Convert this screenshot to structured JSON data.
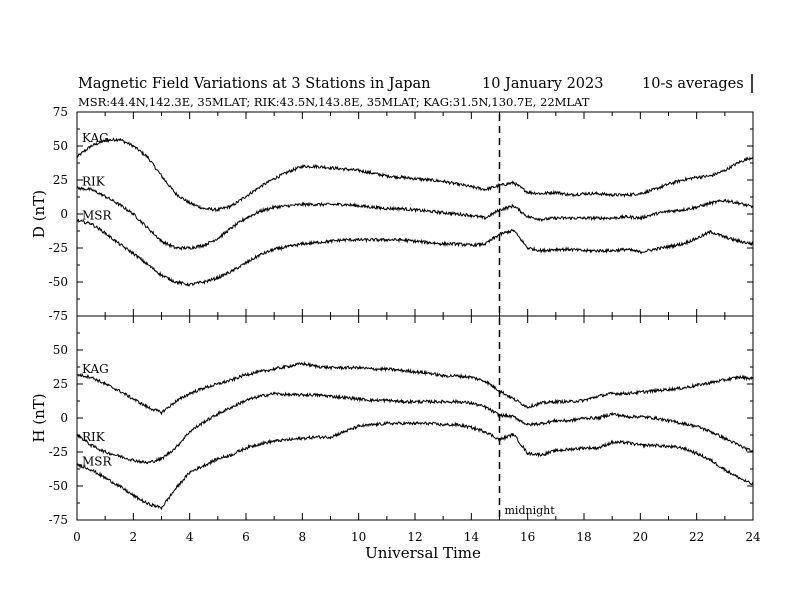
{
  "chart_data": {
    "type": "line",
    "title": "Magnetic Field Variations at 3 Stations in Japan",
    "date": "10 January  2023",
    "averaging": "10-s averages",
    "subtitle": "MSR:44.4N,142.3E, 35MLAT;  RIK:43.5N,143.8E, 35MLAT;  KAG:31.5N,130.7E, 22MLAT",
    "xlabel": "Universal Time",
    "xlim": [
      0,
      24
    ],
    "x_ticks": [
      "0",
      "2",
      "4",
      "6",
      "8",
      "10",
      "12",
      "14",
      "16",
      "18",
      "20",
      "22",
      "24"
    ],
    "grid": false,
    "vertical_marker": {
      "x": 15,
      "label": "midnight",
      "style": "dashed"
    },
    "panels": [
      {
        "ylabel": "D (nT)",
        "ylim": [
          -75,
          75
        ],
        "y_ticks": [
          "75",
          "50",
          "25",
          "0",
          "-25",
          "-50",
          "-75"
        ],
        "x": [
          0,
          0.5,
          1,
          1.5,
          2,
          2.5,
          3,
          3.5,
          4,
          4.5,
          5,
          5.5,
          6,
          6.5,
          7,
          7.5,
          8,
          8.5,
          9,
          9.5,
          10,
          10.5,
          11,
          11.5,
          12,
          12.5,
          13,
          13.5,
          14,
          14.5,
          15,
          15.5,
          16,
          16.5,
          17,
          17.5,
          18,
          18.5,
          19,
          19.5,
          20,
          20.5,
          21,
          21.5,
          22,
          22.5,
          23,
          23.5,
          24
        ],
        "series": [
          {
            "name": "KAG",
            "values": [
              42,
              50,
              54,
              55,
              50,
              42,
              28,
              15,
              8,
              4,
              3,
              6,
              13,
              20,
              26,
              31,
              35,
              35,
              34,
              33,
              32,
              30,
              28,
              27,
              26,
              25,
              24,
              22,
              20,
              18,
              21,
              23,
              16,
              15,
              16,
              14,
              15,
              15,
              14,
              14,
              15,
              18,
              22,
              25,
              27,
              28,
              32,
              38,
              42
            ]
          },
          {
            "name": "RIK",
            "values": [
              19,
              18,
              13,
              7,
              0,
              -10,
              -20,
              -25,
              -25,
              -23,
              -18,
              -10,
              -3,
              2,
              5,
              6,
              7,
              7,
              7,
              7,
              6,
              5,
              4,
              4,
              3,
              2,
              1,
              0,
              -1,
              -3,
              3,
              6,
              -2,
              -4,
              -3,
              -3,
              -3,
              -3,
              -3,
              -2,
              -3,
              0,
              2,
              3,
              5,
              8,
              10,
              8,
              5
            ]
          },
          {
            "name": "MSR",
            "values": [
              -5,
              -7,
              -14,
              -22,
              -29,
              -37,
              -45,
              -50,
              -52,
              -50,
              -47,
              -42,
              -36,
              -30,
              -26,
              -24,
              -22,
              -21,
              -20,
              -19,
              -19,
              -19,
              -19,
              -19,
              -20,
              -21,
              -22,
              -22,
              -23,
              -22,
              -15,
              -12,
              -25,
              -27,
              -26,
              -26,
              -27,
              -27,
              -27,
              -26,
              -28,
              -26,
              -24,
              -22,
              -18,
              -13,
              -17,
              -20,
              -22
            ]
          }
        ]
      },
      {
        "ylabel": "H (nT)",
        "ylim": [
          -75,
          75
        ],
        "y_ticks": [
          "",
          "50",
          "25",
          "0",
          "-25",
          "-50",
          "-75"
        ],
        "x": [
          0,
          0.5,
          1,
          1.5,
          2,
          2.5,
          3,
          3.5,
          4,
          4.5,
          5,
          5.5,
          6,
          6.5,
          7,
          7.5,
          8,
          8.5,
          9,
          9.5,
          10,
          10.5,
          11,
          11.5,
          12,
          12.5,
          13,
          13.5,
          14,
          14.5,
          15,
          15.5,
          16,
          16.5,
          17,
          17.5,
          18,
          18.5,
          19,
          19.5,
          20,
          20.5,
          21,
          21.5,
          22,
          22.5,
          23,
          23.5,
          24
        ],
        "series": [
          {
            "name": "KAG",
            "values": [
              32,
              30,
              25,
              20,
              14,
              8,
              4,
              12,
              18,
              22,
              25,
              28,
              32,
              34,
              36,
              38,
              40,
              38,
              37,
              37,
              37,
              36,
              36,
              35,
              34,
              33,
              31,
              31,
              30,
              27,
              20,
              14,
              8,
              11,
              12,
              12,
              13,
              16,
              18,
              18,
              19,
              20,
              21,
              22,
              24,
              26,
              28,
              30,
              29
            ]
          },
          {
            "name": "RIK",
            "values": [
              -12,
              -20,
              -25,
              -28,
              -31,
              -33,
              -30,
              -22,
              -10,
              -3,
              3,
              8,
              13,
              16,
              18,
              17,
              17,
              17,
              16,
              15,
              14,
              13,
              13,
              12,
              12,
              12,
              12,
              12,
              11,
              8,
              2,
              1,
              -5,
              -4,
              -2,
              -2,
              0,
              0,
              3,
              1,
              1,
              0,
              -2,
              -4,
              -6,
              -10,
              -15,
              -20,
              -25
            ]
          },
          {
            "name": "MSR",
            "values": [
              -34,
              -38,
              -44,
              -50,
              -57,
              -63,
              -66,
              -52,
              -40,
              -35,
              -30,
              -27,
              -22,
              -19,
              -17,
              -16,
              -15,
              -14,
              -14,
              -10,
              -6,
              -5,
              -4,
              -4,
              -4,
              -4,
              -5,
              -5,
              -7,
              -10,
              -16,
              -12,
              -26,
              -27,
              -24,
              -23,
              -22,
              -22,
              -18,
              -18,
              -20,
              -20,
              -21,
              -22,
              -26,
              -31,
              -38,
              -44,
              -49
            ]
          }
        ]
      }
    ]
  }
}
